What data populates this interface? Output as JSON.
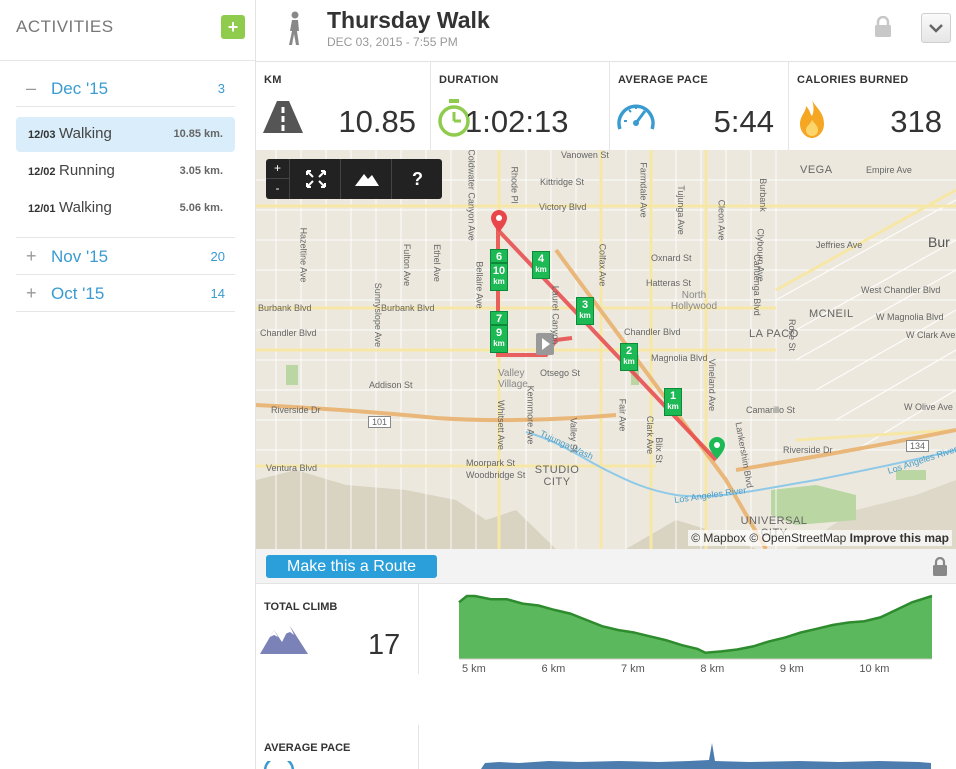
{
  "sidebar": {
    "title": "ACTIVITIES",
    "add_label": "+",
    "months": [
      {
        "symbol": "–",
        "label": "Dec '15",
        "count": "3"
      },
      {
        "symbol": "+",
        "label": "Nov '15",
        "count": "20"
      },
      {
        "symbol": "+",
        "label": "Oct '15",
        "count": "14"
      }
    ],
    "activities": [
      {
        "date": "12/03",
        "type": "Walking",
        "distance": "10.85 km."
      },
      {
        "date": "12/02",
        "type": "Running",
        "distance": "3.05 km."
      },
      {
        "date": "12/01",
        "type": "Walking",
        "distance": "5.06 km."
      }
    ]
  },
  "header": {
    "title": "Thursday Walk",
    "date": "DEC 03, 2015  -  7:55 PM"
  },
  "stats": {
    "km": {
      "label": "KM",
      "value": "10.85"
    },
    "duration": {
      "label": "DURATION",
      "value": "1:02:13"
    },
    "pace": {
      "label": "AVERAGE PACE",
      "value": "5:44"
    },
    "calories": {
      "label": "CALORIES BURNED",
      "value": "318"
    }
  },
  "map": {
    "controls": {
      "zoom_in": "+",
      "zoom_out": "-",
      "help": "?"
    },
    "attribution": {
      "mapbox": "© Mapbox",
      "osm": "© OpenStreetMap",
      "improve": "Improve this map"
    },
    "labels": {
      "vanowen": "Vanowen St",
      "kittridge": "Kittridge St",
      "victory": "Victory Blvd",
      "oxnard": "Oxnard St",
      "hatteras": "Hatteras St",
      "burbank_w": "Burbank Blvd",
      "burbank_e": "Burbank Blvd",
      "chandler_w": "Chandler Blvd",
      "chandler_e": "Chandler Blvd",
      "magnolia": "Magnolia Blvd",
      "otsego": "Otsego St",
      "addison": "Addison St",
      "riverside_w": "Riverside Dr",
      "riverside_e": "Riverside Dr",
      "ventura": "Ventura Blvd",
      "moorpark": "Moorpark St",
      "woodbridge": "Woodbridge St",
      "camarillo": "Camarillo St",
      "empire": "Empire Ave",
      "w_chandler": "West Chandler Blvd",
      "w_magnolia": "W Magnolia Blvd",
      "w_clark": "W Clark Ave",
      "jeffries": "Jeffries Ave",
      "w_olive": "W Olive Ave",
      "vega": "VEGA",
      "bur": "Bur",
      "mcneil": "MCNEIL",
      "lapaco": "LA PACO",
      "north_hollywood": "North Hollywood",
      "valley_village": "Valley Village",
      "studio_city": "STUDIO CITY",
      "universal_city": "UNIVERSAL CITY",
      "tujunga": "Tujunga Wash",
      "la_river": "Los Angeles River",
      "la_river2": "Los Angeles River",
      "rte101": "101",
      "rte134": "134",
      "ethel": "Ethel Ave",
      "fulton": "Fulton Ave",
      "whitsett": "Whitsett Ave",
      "belaire": "Bellaire Ave",
      "coldwater": "Coldwater Canyon Ave",
      "laurel": "Laurel Canyon",
      "colfax": "Colfax Ave",
      "vineland": "Vineland Ave",
      "cahuenga": "Cahuenga Blvd",
      "clybourn": "Clybourn Ave",
      "hazeltine": "Hazeltine Ave",
      "sunnyslope": "Sunnyslope Ave",
      "farmdale": "Farmdale Ave",
      "tujunga_ave": "Tujunga Ave",
      "lankershim": "Lankershim Blvd",
      "rose": "Rose St",
      "clark_ave": "Clark Ave",
      "valley": "Valley St",
      "rhode": "Rhode Pl",
      "blix": "Blix St",
      "fair": "Fair Ave",
      "kenmore": "Kennmore Ave",
      "cleon": "Cleon Ave",
      "burbank_name": "Burbank"
    },
    "markers": [
      {
        "num": "1",
        "unit": "km"
      },
      {
        "num": "2",
        "unit": "km"
      },
      {
        "num": "3",
        "unit": "km"
      },
      {
        "num": "4",
        "unit": "km"
      },
      {
        "num": "6",
        "unit": ""
      },
      {
        "num": "10",
        "unit": "km"
      },
      {
        "num": "7",
        "unit": ""
      },
      {
        "num": "9",
        "unit": "km"
      }
    ],
    "colors": {
      "route": "#e8464a",
      "marker": "#1db954"
    }
  },
  "route_button": "Make this a Route",
  "climb": {
    "label": "TOTAL CLIMB",
    "value": "17",
    "x_ticks": [
      "5 km",
      "6 km",
      "7 km",
      "8 km",
      "9 km",
      "10 km"
    ]
  },
  "pace_chart": {
    "label": "AVERAGE PACE"
  },
  "chart_data": [
    {
      "type": "area",
      "x_ticks": [
        "5 km",
        "6 km",
        "7 km",
        "8 km",
        "9 km",
        "10 km"
      ],
      "xlim": [
        4.9,
        10.85
      ],
      "x": [
        4.9,
        5.0,
        5.1,
        5.3,
        5.5,
        5.7,
        5.9,
        6.1,
        6.3,
        6.5,
        6.7,
        6.9,
        7.1,
        7.3,
        7.5,
        7.7,
        7.9,
        8.0,
        8.2,
        8.4,
        8.6,
        8.8,
        9.0,
        9.2,
        9.4,
        9.6,
        9.8,
        10.0,
        10.2,
        10.4,
        10.6,
        10.85
      ],
      "y": [
        0.9,
        1.0,
        1.0,
        0.95,
        0.95,
        0.88,
        0.85,
        0.78,
        0.72,
        0.62,
        0.52,
        0.46,
        0.42,
        0.36,
        0.3,
        0.22,
        0.16,
        0.1,
        0.12,
        0.15,
        0.2,
        0.28,
        0.34,
        0.42,
        0.48,
        0.54,
        0.58,
        0.6,
        0.66,
        0.78,
        0.9,
        1.0
      ],
      "color": "#5cb85c"
    }
  ]
}
